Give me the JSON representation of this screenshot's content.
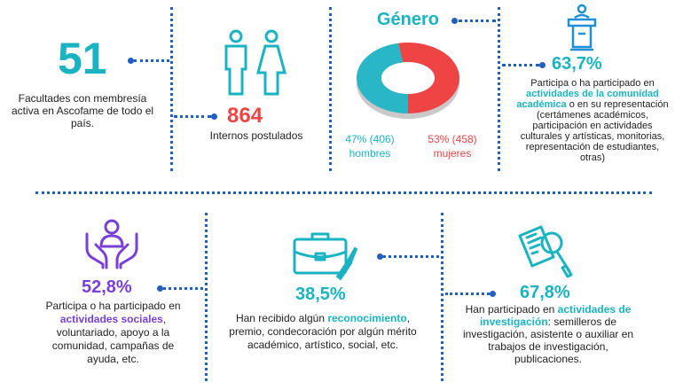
{
  "faculties": {
    "value": "51",
    "text": "Facultades con membresía activa en Ascofame de todo el país."
  },
  "interns": {
    "value": "864",
    "text": "Internos postulados"
  },
  "gender": {
    "title": "Género",
    "men_label": "47% (406)",
    "men_word": "hombres",
    "women_label": "53% (458)",
    "women_word": "mujeres",
    "men_fraction": 0.47,
    "women_fraction": 0.53,
    "men_color": "#29b6c6",
    "women_color": "#ef4444"
  },
  "academic": {
    "value": "63,7%",
    "text_before": "Participa o ha participado en",
    "highlight": "actividades de la comunidad académica",
    "text_after": "o en su representación (certámenes académicos, participación en actividades culturales y artísticas, monitorias, representación de estudiantes, otras)",
    "icon": "podium-icon"
  },
  "social": {
    "value": "52,8%",
    "text_before": "Participa o ha participado en",
    "highlight": "actividades sociales",
    "text_after": ", voluntariado, apoyo a la comunidad, campañas de ayuda, etc.",
    "icon": "helping-hands-icon"
  },
  "recognition": {
    "value": "38,5%",
    "text_before": "Han recibido algún",
    "highlight": "reconocimiento",
    "text_after": ", premio, condecoración por algún mérito académico, artístico, social, etc.",
    "icon": "briefcase-brush-icon"
  },
  "research": {
    "value": "67,8%",
    "text_before": "Han participado en",
    "highlight": "actividades de investigación",
    "text_after": ": semilleros de investigación, asistente o auxiliar en trabajos de investigación, publicaciones.",
    "icon": "document-search-icon"
  },
  "colors": {
    "teal": "#1ab3c2",
    "red": "#ef4444",
    "purple": "#7a3fd6",
    "blue_dots": "#1f5fbf"
  }
}
